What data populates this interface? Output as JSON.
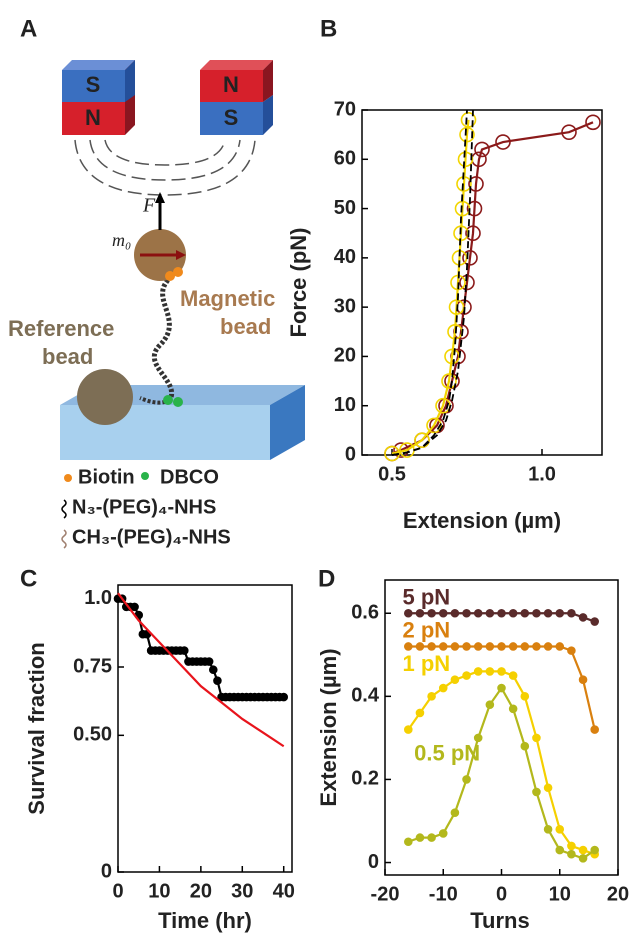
{
  "panel_a": {
    "letter": "A",
    "left_magnet": [
      "S",
      "N"
    ],
    "right_magnet": [
      "N",
      "S"
    ],
    "force": "F",
    "moment": "m₀",
    "magnetic_bead": [
      "Magnetic",
      "bead"
    ],
    "reference_bead": [
      "Reference",
      "bead"
    ],
    "legend": [
      "Biotin",
      "DBCO",
      "N₃-(PEG)₄-NHS",
      "CH₃-(PEG)₄-NHS"
    ]
  },
  "chart_data": [
    {
      "type": "line",
      "panel": "B",
      "xlabel": "Extension (µm)",
      "ylabel": "Force (pN)",
      "xlim": [
        0.4,
        1.2
      ],
      "xticks": [
        0.5,
        {
          "value": 1,
          "label": "1.0"
        }
      ],
      "ylim": [
        0,
        70
      ],
      "yticks": [
        0,
        10,
        20,
        30,
        40,
        50,
        60,
        70
      ],
      "series": [
        {
          "color": "#8b1a1a",
          "marker": "open-circle",
          "x": [
            0.5,
            0.53,
            0.6,
            0.65,
            0.68,
            0.7,
            0.72,
            0.73,
            0.74,
            0.75,
            0.76,
            0.77,
            0.775,
            0.78,
            0.79,
            0.8,
            0.87,
            1.09,
            1.17
          ],
          "values": [
            0.3,
            1,
            3,
            6,
            10,
            15,
            20,
            25,
            30,
            35,
            40,
            45,
            50,
            55,
            60,
            62,
            63.5,
            65.5,
            67.5
          ]
        },
        {
          "color": "#f2d500",
          "marker": "open-circle",
          "x": [
            0.5,
            0.55,
            0.6,
            0.64,
            0.67,
            0.69,
            0.7,
            0.71,
            0.715,
            0.72,
            0.725,
            0.73,
            0.735,
            0.74,
            0.745,
            0.75,
            0.755
          ],
          "values": [
            0.3,
            1,
            3,
            6,
            10,
            15,
            20,
            25,
            30,
            35,
            40,
            45,
            50,
            55,
            60,
            65,
            68
          ]
        },
        {
          "color": "#000000",
          "dash": true,
          "x": [
            0.5,
            0.55,
            0.6,
            0.65,
            0.68,
            0.7,
            0.72,
            0.74,
            0.75,
            0.76,
            0.77
          ],
          "values": [
            0,
            0.5,
            1.5,
            4,
            7,
            11,
            17,
            28,
            38,
            52,
            70
          ]
        },
        {
          "color": "#000000",
          "dash": true,
          "x": [
            0.5,
            0.55,
            0.6,
            0.64,
            0.67,
            0.69,
            0.7,
            0.71,
            0.72,
            0.73,
            0.75
          ],
          "values": [
            0,
            0.5,
            1.5,
            4,
            7,
            11,
            15,
            22,
            32,
            48,
            70
          ]
        }
      ]
    },
    {
      "type": "line",
      "panel": "C",
      "xlabel": "Time (hr)",
      "ylabel": "Survival fraction",
      "xlim": [
        0,
        42
      ],
      "xticks": [
        0,
        10,
        20,
        30,
        40
      ],
      "ylim": [
        0,
        1.05
      ],
      "yticks": [
        0,
        {
          "value": 0.5,
          "label": "0.50"
        },
        0.75,
        {
          "value": 1,
          "label": "1.0"
        }
      ],
      "series": [
        {
          "color": "#000000",
          "marker": "dot",
          "x": [
            0,
            1,
            2,
            3,
            4,
            5,
            6,
            7,
            8,
            9,
            10,
            11,
            12,
            13,
            14,
            15,
            16,
            17,
            18,
            19,
            20,
            21,
            22,
            23,
            24,
            25,
            26,
            27,
            28,
            29,
            30,
            31,
            32,
            33,
            34,
            35,
            36,
            37,
            38,
            39,
            40
          ],
          "values": [
            1,
            1,
            0.97,
            0.97,
            0.97,
            0.94,
            0.87,
            0.87,
            0.81,
            0.81,
            0.81,
            0.81,
            0.81,
            0.81,
            0.81,
            0.81,
            0.81,
            0.77,
            0.77,
            0.77,
            0.77,
            0.77,
            0.77,
            0.74,
            0.7,
            0.64,
            0.64,
            0.64,
            0.64,
            0.64,
            0.64,
            0.64,
            0.64,
            0.64,
            0.64,
            0.64,
            0.64,
            0.64,
            0.64,
            0.64,
            0.64
          ]
        },
        {
          "color": "#e8141c",
          "x": [
            0,
            5,
            10,
            15,
            20,
            25,
            30,
            35,
            40
          ],
          "values": [
            1.02,
            0.92,
            0.84,
            0.76,
            0.68,
            0.62,
            0.56,
            0.51,
            0.46
          ]
        }
      ]
    },
    {
      "type": "line",
      "panel": "D",
      "xlabel": "Turns",
      "ylabel": "Extension (µm)",
      "xlim": [
        -20,
        20
      ],
      "xticks": [
        -20,
        -10,
        0,
        10,
        20
      ],
      "ylim": [
        -0.03,
        0.68
      ],
      "yticks": [
        0,
        0.2,
        0.4,
        0.6
      ],
      "x": [
        -16,
        -14,
        -12,
        -10,
        -8,
        -6,
        -4,
        -2,
        0,
        2,
        4,
        6,
        8,
        10,
        12,
        14,
        16
      ],
      "series": [
        {
          "name": "5 pN",
          "color": "#5a2b2b",
          "marker": "dot",
          "values": [
            0.6,
            0.6,
            0.6,
            0.6,
            0.6,
            0.6,
            0.6,
            0.6,
            0.6,
            0.6,
            0.6,
            0.6,
            0.6,
            0.6,
            0.6,
            0.59,
            0.58
          ]
        },
        {
          "name": "2 pN",
          "color": "#d9800f",
          "marker": "dot",
          "values": [
            0.52,
            0.52,
            0.52,
            0.52,
            0.52,
            0.52,
            0.52,
            0.52,
            0.52,
            0.52,
            0.52,
            0.52,
            0.52,
            0.52,
            0.51,
            0.44,
            0.32
          ]
        },
        {
          "name": "1 pN",
          "color": "#f5d000",
          "marker": "dot",
          "values": [
            0.32,
            0.36,
            0.4,
            0.42,
            0.44,
            0.45,
            0.46,
            0.46,
            0.46,
            0.45,
            0.4,
            0.3,
            0.18,
            0.08,
            0.04,
            0.03,
            0.02
          ]
        },
        {
          "name": "0.5 pN",
          "color": "#b3b81c",
          "marker": "dot",
          "values": [
            0.05,
            0.06,
            0.06,
            0.07,
            0.12,
            0.2,
            0.3,
            0.38,
            0.42,
            0.37,
            0.28,
            0.17,
            0.08,
            0.03,
            0.02,
            0.01,
            0.03
          ]
        }
      ]
    }
  ]
}
